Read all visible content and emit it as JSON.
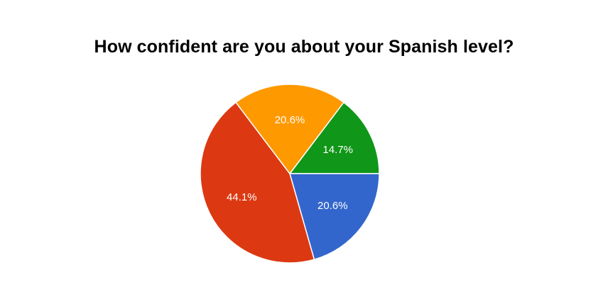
{
  "chart_data": {
    "type": "pie",
    "title": "How confident are you about your Spanish level?",
    "slices": [
      {
        "value": 14.7,
        "label": "14.7%",
        "color": "#109618"
      },
      {
        "value": 20.6,
        "label": "20.6%",
        "color": "#3366cc"
      },
      {
        "value": 44.1,
        "label": "44.1%",
        "color": "#dc3912"
      },
      {
        "value": 20.6,
        "label": "20.6%",
        "color": "#ff9900"
      }
    ],
    "legend": "none"
  }
}
